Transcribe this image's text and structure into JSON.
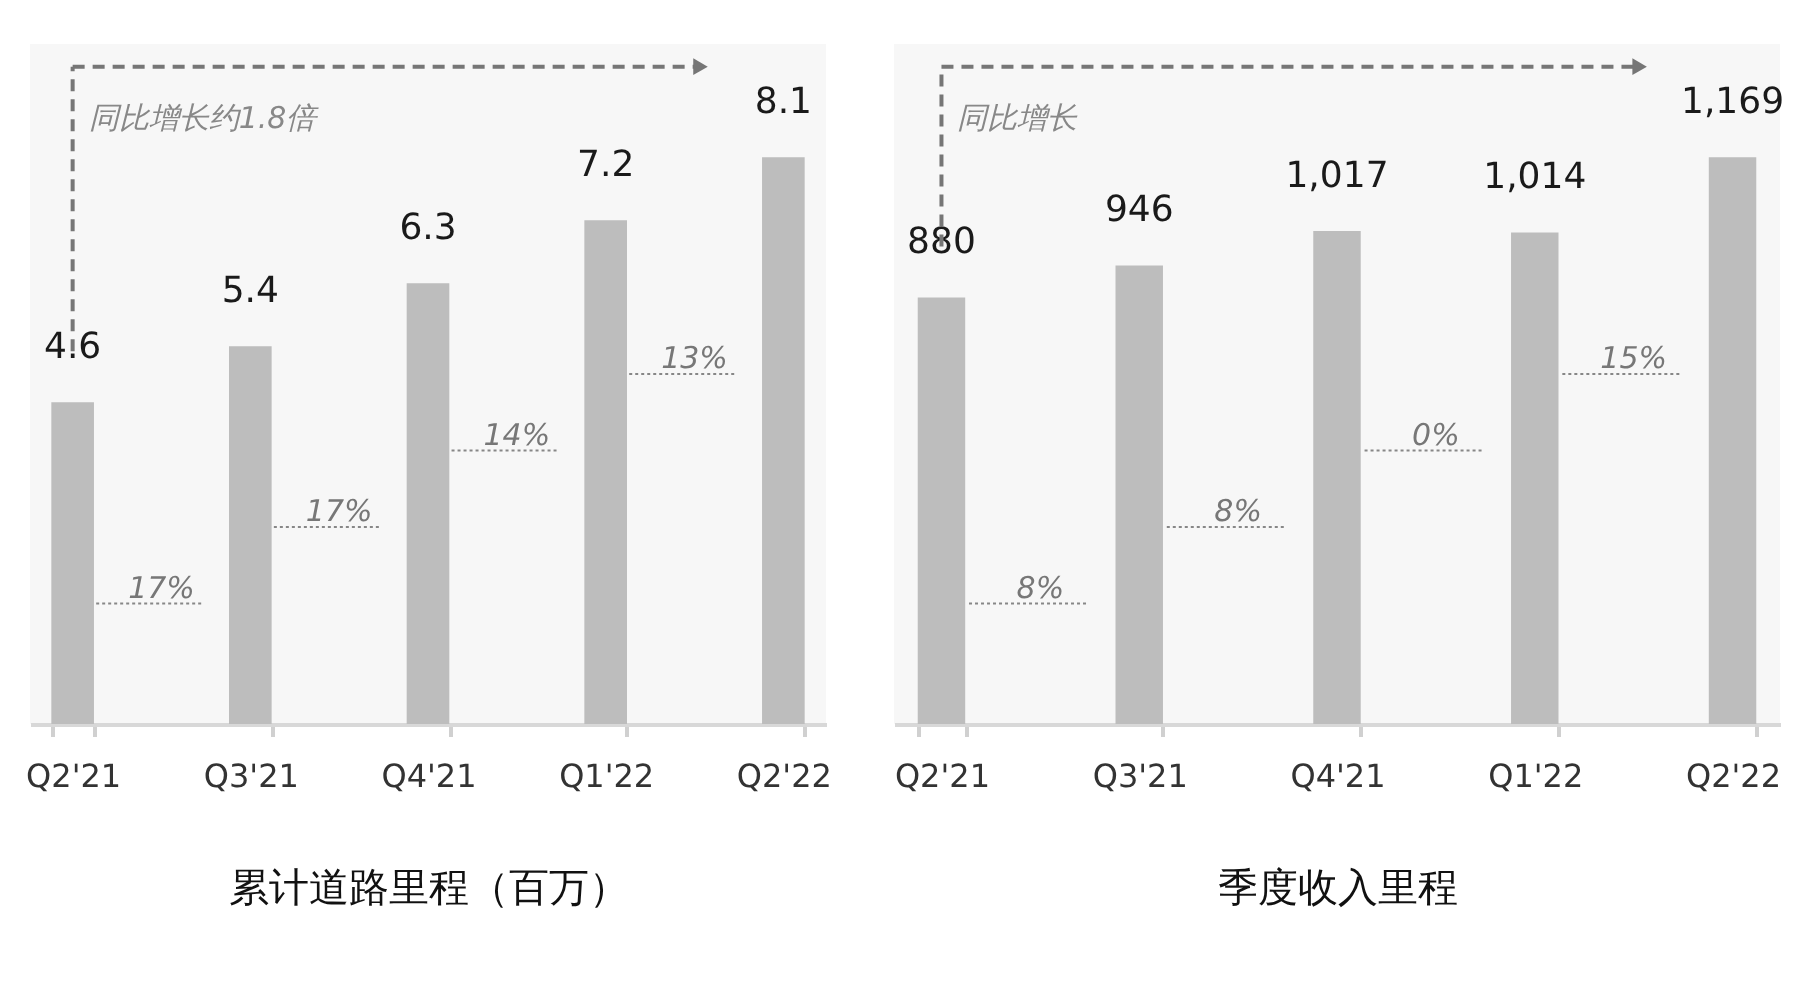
{
  "chart_data": [
    {
      "type": "bar",
      "xlabel": "累计道路里程（百万）",
      "categories": [
        "Q2'21",
        "Q3'21",
        "Q4'21",
        "Q1'22",
        "Q2'22"
      ],
      "values": [
        4.6,
        5.4,
        6.3,
        7.2,
        8.1
      ],
      "color": "#bdbdbd",
      "data_labels": true,
      "annotations": [
        "同比增长约1.8倍",
        "17%",
        "17%",
        "14%",
        "13%"
      ]
    },
    {
      "type": "bar",
      "xlabel": "季度收入里程",
      "categories": [
        "Q2'21",
        "Q3'21",
        "Q4'21",
        "Q1'22",
        "Q2'22"
      ],
      "values": [
        880,
        946,
        1017,
        1014,
        1169
      ],
      "color": "#bdbdbd",
      "value_labels": [
        "880",
        "946",
        "1,017",
        "1,014",
        "1,169"
      ],
      "annotations": [
        "同比增长",
        "8%",
        "8%",
        "0%",
        "15%"
      ]
    }
  ]
}
